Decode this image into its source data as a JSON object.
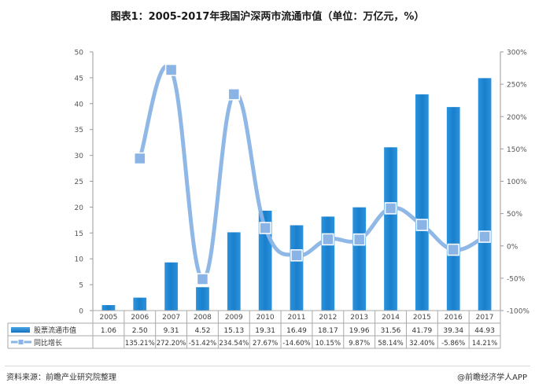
{
  "title": "图表1：2005-2017年我国沪深两市流通市值（单位：万亿元，%）",
  "chart_data": {
    "type": "bar",
    "categories": [
      "2005",
      "2006",
      "2007",
      "2008",
      "2009",
      "2010",
      "2011",
      "2012",
      "2013",
      "2014",
      "2015",
      "2016",
      "2017"
    ],
    "series": [
      {
        "name": "股票流通市值",
        "axis": "left",
        "values": [
          1.06,
          2.5,
          9.31,
          4.52,
          15.13,
          19.31,
          16.49,
          18.17,
          19.96,
          31.56,
          41.79,
          39.34,
          44.93
        ],
        "labels": [
          "1.06",
          "2.50",
          "9.31",
          "4.52",
          "15.13",
          "19.31",
          "16.49",
          "18.17",
          "19.96",
          "31.56",
          "41.79",
          "39.34",
          "44.93"
        ],
        "color": "#1e88d4"
      },
      {
        "name": "同比增长",
        "axis": "right",
        "type": "line",
        "values": [
          null,
          135.21,
          272.2,
          -51.42,
          234.54,
          27.67,
          -14.6,
          10.15,
          9.87,
          58.14,
          32.4,
          -5.86,
          14.21
        ],
        "labels": [
          "",
          "135.21%",
          "272.20%",
          "-51.42%",
          "234.54%",
          "27.67%",
          "-14.60%",
          "10.15%",
          "9.87%",
          "58.14%",
          "32.40%",
          "-5.86%",
          "14.21%"
        ],
        "color": "#8ab4e6"
      }
    ],
    "y_left": {
      "lim": [
        0,
        50
      ],
      "ticks": [
        "0",
        "5",
        "10",
        "15",
        "20",
        "25",
        "30",
        "35",
        "40",
        "45",
        "50"
      ]
    },
    "y_right": {
      "lim": [
        -100,
        300
      ],
      "ticks": [
        "-100%",
        "-50%",
        "0%",
        "50%",
        "100%",
        "150%",
        "200%",
        "250%",
        "300%"
      ]
    },
    "grid": false,
    "legend": "data-table-left"
  },
  "footer": {
    "source": "资料来源：前瞻产业研究院整理",
    "brand": "@前瞻经济学人APP"
  }
}
